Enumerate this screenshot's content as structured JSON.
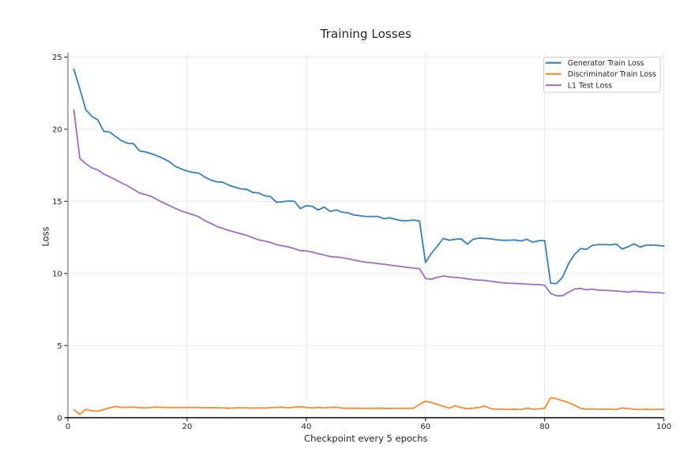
{
  "chart_data": {
    "type": "line",
    "title": "Training Losses",
    "xlabel": "Checkpoint every 5 epochs",
    "ylabel": "Loss",
    "xlim": [
      0,
      100
    ],
    "ylim": [
      0,
      25.3
    ],
    "xticks": [
      0,
      20,
      40,
      60,
      80,
      100
    ],
    "yticks": [
      0,
      5,
      10,
      15,
      20,
      25
    ],
    "grid": true,
    "legend_position": "upper right",
    "x": [
      1,
      2,
      3,
      4,
      5,
      6,
      7,
      8,
      9,
      10,
      11,
      12,
      13,
      14,
      15,
      16,
      17,
      18,
      19,
      20,
      21,
      22,
      23,
      24,
      25,
      26,
      27,
      28,
      29,
      30,
      31,
      32,
      33,
      34,
      35,
      36,
      37,
      38,
      39,
      40,
      41,
      42,
      43,
      44,
      45,
      46,
      47,
      48,
      49,
      50,
      51,
      52,
      53,
      54,
      55,
      56,
      57,
      58,
      59,
      60,
      61,
      62,
      63,
      64,
      65,
      66,
      67,
      68,
      69,
      70,
      71,
      72,
      73,
      74,
      75,
      76,
      77,
      78,
      79,
      80,
      81,
      82,
      83,
      84,
      85,
      86,
      87,
      88,
      89,
      90,
      91,
      92,
      93,
      94,
      95,
      96,
      97,
      98,
      99,
      100
    ],
    "series": [
      {
        "name": "Generator Train Loss",
        "color": "#3a86bc",
        "values": [
          24.15,
          22.8,
          21.35,
          20.9,
          20.65,
          19.86,
          19.8,
          19.5,
          19.2,
          19.03,
          19.0,
          18.5,
          18.43,
          18.3,
          18.15,
          17.97,
          17.75,
          17.43,
          17.25,
          17.1,
          17.0,
          16.95,
          16.67,
          16.47,
          16.35,
          16.32,
          16.12,
          15.98,
          15.87,
          15.83,
          15.62,
          15.58,
          15.39,
          15.33,
          14.93,
          14.97,
          15.03,
          15.0,
          14.5,
          14.7,
          14.65,
          14.4,
          14.6,
          14.3,
          14.4,
          14.25,
          14.2,
          14.05,
          14.0,
          13.95,
          13.95,
          13.95,
          13.8,
          13.85,
          13.75,
          13.66,
          13.66,
          13.7,
          13.63,
          10.76,
          11.4,
          11.9,
          12.43,
          12.3,
          12.37,
          12.4,
          12.03,
          12.37,
          12.45,
          12.43,
          12.4,
          12.33,
          12.3,
          12.3,
          12.32,
          12.25,
          12.37,
          12.17,
          12.27,
          12.28,
          9.32,
          9.3,
          9.74,
          10.68,
          11.31,
          11.72,
          11.67,
          11.95,
          12.0,
          12.0,
          11.98,
          12.04,
          11.7,
          11.85,
          12.05,
          11.83,
          11.96,
          11.97,
          11.94,
          11.9
        ]
      },
      {
        "name": "Discriminator Train Loss",
        "color": "#fb8e2f",
        "values": [
          0.55,
          0.24,
          0.58,
          0.48,
          0.45,
          0.56,
          0.68,
          0.78,
          0.72,
          0.72,
          0.74,
          0.7,
          0.68,
          0.72,
          0.74,
          0.71,
          0.7,
          0.71,
          0.7,
          0.71,
          0.72,
          0.7,
          0.69,
          0.7,
          0.69,
          0.68,
          0.65,
          0.68,
          0.69,
          0.68,
          0.66,
          0.68,
          0.66,
          0.7,
          0.72,
          0.73,
          0.68,
          0.73,
          0.76,
          0.71,
          0.68,
          0.71,
          0.68,
          0.71,
          0.73,
          0.66,
          0.65,
          0.66,
          0.65,
          0.645,
          0.65,
          0.66,
          0.65,
          0.64,
          0.65,
          0.65,
          0.65,
          0.66,
          0.92,
          1.14,
          1.05,
          0.92,
          0.79,
          0.66,
          0.83,
          0.7,
          0.62,
          0.66,
          0.72,
          0.8,
          0.62,
          0.59,
          0.59,
          0.57,
          0.59,
          0.57,
          0.66,
          0.59,
          0.61,
          0.66,
          1.38,
          1.31,
          1.18,
          1.05,
          0.85,
          0.66,
          0.59,
          0.61,
          0.59,
          0.59,
          0.59,
          0.57,
          0.67,
          0.63,
          0.59,
          0.57,
          0.59,
          0.56,
          0.58,
          0.58
        ]
      },
      {
        "name": "L1 Test Loss",
        "color": "#9e74c4",
        "values": [
          21.33,
          17.98,
          17.6,
          17.32,
          17.18,
          16.9,
          16.7,
          16.5,
          16.27,
          16.08,
          15.83,
          15.58,
          15.47,
          15.34,
          15.12,
          14.9,
          14.71,
          14.52,
          14.34,
          14.2,
          14.07,
          13.92,
          13.65,
          13.47,
          13.25,
          13.12,
          12.98,
          12.87,
          12.75,
          12.64,
          12.48,
          12.33,
          12.25,
          12.15,
          12.0,
          11.91,
          11.84,
          11.72,
          11.58,
          11.56,
          11.48,
          11.37,
          11.28,
          11.17,
          11.14,
          11.1,
          11.02,
          10.93,
          10.85,
          10.78,
          10.74,
          10.68,
          10.64,
          10.58,
          10.53,
          10.47,
          10.42,
          10.37,
          10.33,
          9.65,
          9.6,
          9.73,
          9.83,
          9.76,
          9.73,
          9.69,
          9.63,
          9.57,
          9.54,
          9.52,
          9.46,
          9.4,
          9.35,
          9.32,
          9.31,
          9.29,
          9.26,
          9.24,
          9.23,
          9.18,
          8.62,
          8.45,
          8.45,
          8.7,
          8.92,
          8.95,
          8.87,
          8.91,
          8.84,
          8.83,
          8.81,
          8.79,
          8.75,
          8.71,
          8.77,
          8.73,
          8.71,
          8.68,
          8.67,
          8.64
        ]
      }
    ]
  }
}
